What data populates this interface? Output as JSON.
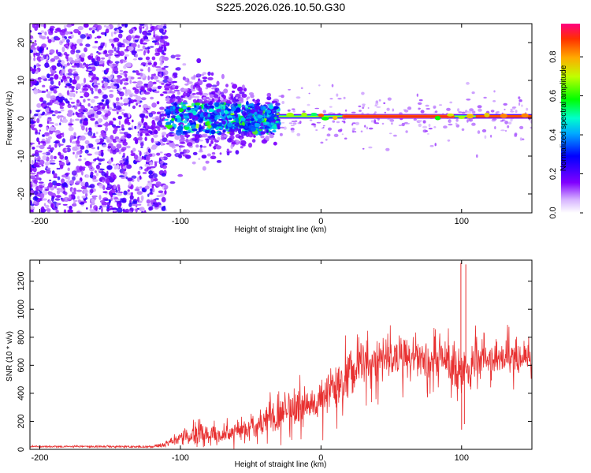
{
  "chart_data": [
    {
      "type": "heatmap",
      "title": "S225.2026.026.10.50.G30",
      "xlabel": "Height of straight line (km)",
      "ylabel": "Frequency (Hz)",
      "xlim": [
        -207,
        150
      ],
      "ylim": [
        -25,
        25
      ],
      "xticks": [
        -200,
        -100,
        0,
        100
      ],
      "yticks": [
        -20,
        -10,
        0,
        10,
        20
      ],
      "colorbar": {
        "label": "Normalized spectral amplitude",
        "ticks": [
          "0.0",
          "0.2",
          "0.4",
          "0.6",
          "0.8"
        ],
        "range": [
          0,
          0.97
        ]
      },
      "features": {
        "noise_region_x": [
          -207,
          -110
        ],
        "transition_region_x": [
          -110,
          -30
        ],
        "tone_frequency_hz": 0.5,
        "tone_start_x": -30,
        "tone_end_x": 150,
        "strong_segment_x": [
          15,
          95
        ]
      }
    },
    {
      "type": "line",
      "title": "",
      "xlabel": "Height of straight line (km)",
      "ylabel": "SNR (10 * v/v)",
      "xlim": [
        -207,
        150
      ],
      "ylim": [
        0,
        1350
      ],
      "xticks": [
        -200,
        -100,
        0,
        100
      ],
      "yticks": [
        0,
        200,
        400,
        600,
        800,
        1000,
        1200
      ],
      "series_color": "#e83030",
      "envelope": {
        "x": [
          -207,
          -120,
          -110,
          -100,
          -90,
          -70,
          -50,
          -40,
          -30,
          -20,
          -10,
          0,
          10,
          20,
          30,
          40,
          50,
          60,
          70,
          80,
          90,
          100,
          110,
          120,
          130,
          140,
          150
        ],
        "mean": [
          20,
          20,
          40,
          80,
          110,
          100,
          150,
          220,
          260,
          300,
          330,
          380,
          420,
          520,
          600,
          620,
          640,
          650,
          660,
          640,
          650,
          560,
          640,
          630,
          650,
          650,
          660
        ],
        "spread": [
          8,
          10,
          25,
          60,
          80,
          70,
          90,
          130,
          160,
          170,
          170,
          190,
          200,
          200,
          180,
          190,
          170,
          170,
          170,
          170,
          170,
          220,
          160,
          150,
          150,
          150,
          140
        ]
      },
      "spikes": [
        {
          "x": 99.5,
          "y": 1330
        },
        {
          "x": 103,
          "y": 1320
        },
        {
          "x": 100,
          "y": 140
        },
        {
          "x": 102,
          "y": 180
        }
      ]
    }
  ]
}
